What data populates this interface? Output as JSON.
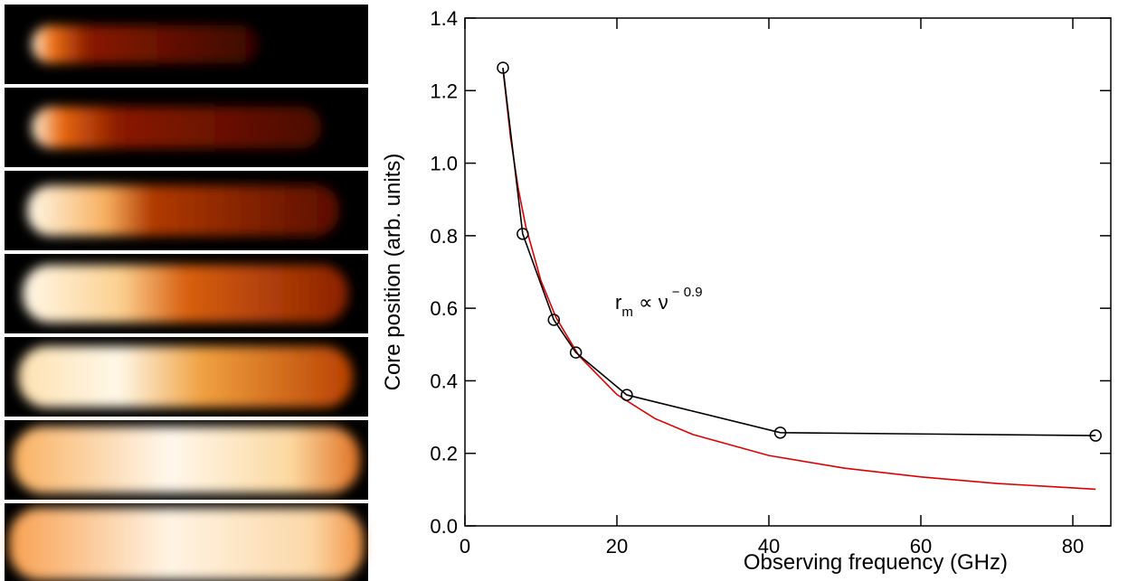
{
  "chart_data": {
    "type": "line",
    "xlabel": "Observing frequency (GHz)",
    "ylabel": "Core position (arb. units)",
    "annotation": {
      "base": "r",
      "sub": "m",
      "mid": " ∝ ν",
      "sup": "− 0.9"
    },
    "xlim": [
      0,
      85
    ],
    "xticks": [
      0,
      20,
      40,
      60,
      80
    ],
    "ylim": [
      0,
      1.4
    ],
    "yticks": [
      {
        "value": 0,
        "label": "0.0"
      },
      0.2,
      0.4,
      0.6,
      0.8,
      {
        "value": 1,
        "label": "1.0"
      },
      1.2,
      1.4
    ],
    "series": [
      {
        "color": "#000000",
        "marker": "circle",
        "x": [
          5,
          7.6,
          11.7,
          14.6,
          21.3,
          41.5,
          83
        ],
        "values": [
          1.263,
          0.805,
          0.568,
          0.478,
          0.361,
          0.257,
          0.249
        ]
      },
      {
        "color": "#dd0000",
        "marker": "none",
        "x": [
          5,
          6,
          7,
          8,
          10,
          12,
          15,
          20,
          25,
          30,
          40,
          50,
          60,
          70,
          83
        ],
        "values": [
          1.26,
          1.071,
          0.932,
          0.826,
          0.676,
          0.574,
          0.469,
          0.362,
          0.296,
          0.252,
          0.194,
          0.159,
          0.135,
          0.117,
          0.101
        ]
      }
    ]
  }
}
